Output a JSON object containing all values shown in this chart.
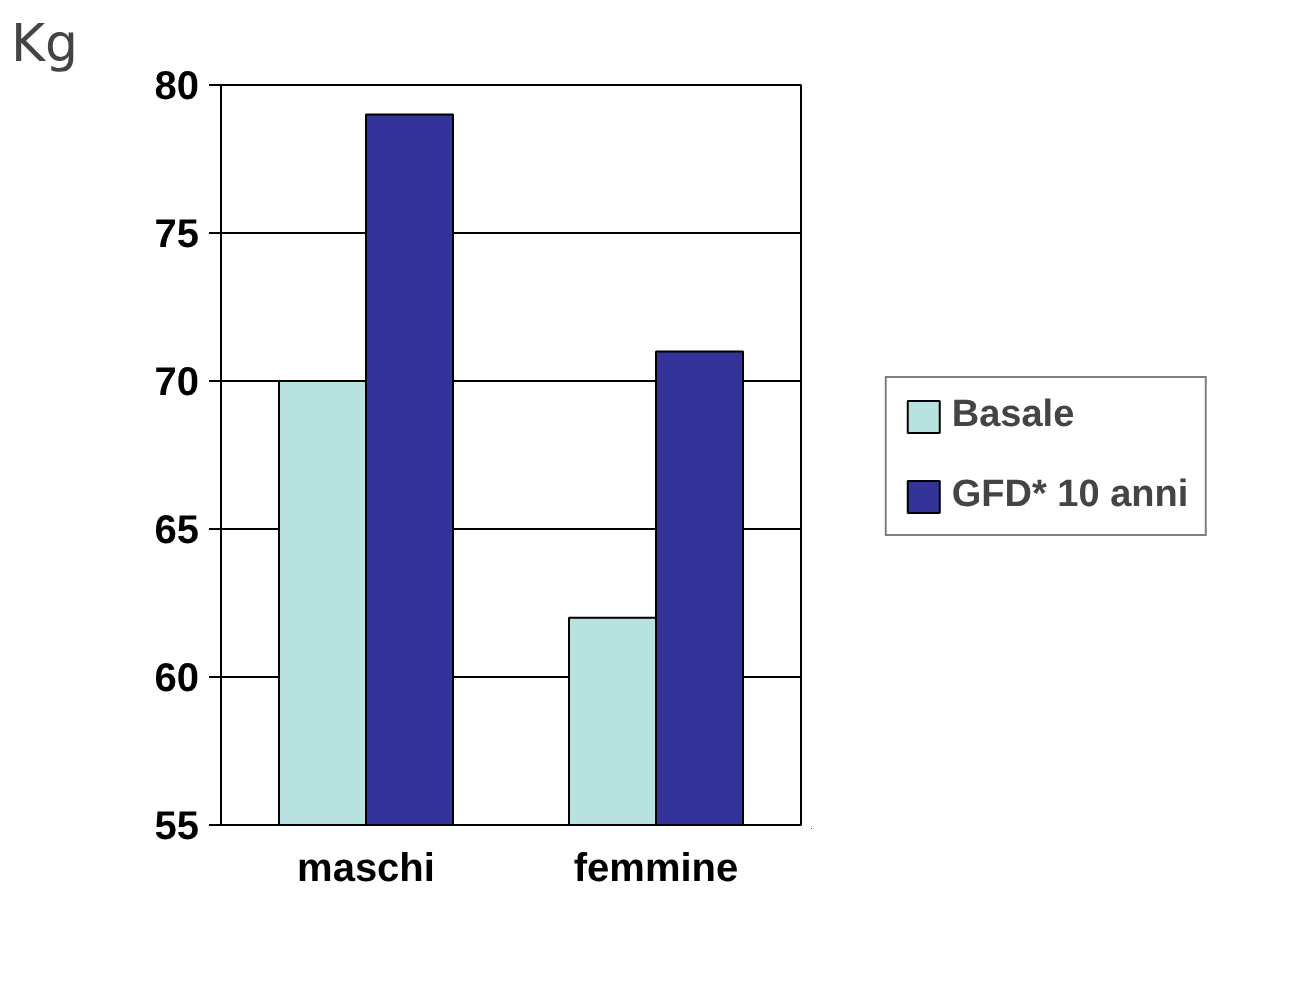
{
  "chart_data": {
    "type": "bar",
    "ylabel": "Kg",
    "categories": [
      "maschi",
      "femmine"
    ],
    "series": [
      {
        "name": "Basale",
        "color": "#b8e2e0",
        "values": [
          70,
          62
        ]
      },
      {
        "name": "GFD* 10 anni",
        "color": "#333399",
        "values": [
          79,
          71
        ]
      }
    ],
    "ylim": [
      55,
      80
    ],
    "yticks": [
      55,
      60,
      65,
      70,
      75,
      80
    ],
    "grid": "y",
    "legend": "right"
  }
}
